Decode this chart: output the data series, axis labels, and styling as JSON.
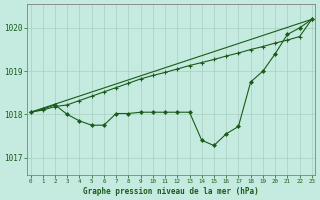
{
  "background_color": "#c5eae0",
  "grid_color": "#a8cfc0",
  "line_color": "#1a5c1a",
  "xlabel": "Graphe pression niveau de la mer (hPa)",
  "ylim": [
    1016.6,
    1020.55
  ],
  "xlim": [
    -0.3,
    23.3
  ],
  "yticks": [
    1017,
    1018,
    1019,
    1020
  ],
  "xticks": [
    0,
    1,
    2,
    3,
    4,
    5,
    6,
    7,
    8,
    9,
    10,
    11,
    12,
    13,
    14,
    15,
    16,
    17,
    18,
    19,
    20,
    21,
    22,
    23
  ],
  "series_straight": {
    "x": [
      0,
      23
    ],
    "y": [
      1018.05,
      1020.2
    ]
  },
  "series_upper": {
    "x": [
      0,
      1,
      2,
      3,
      4,
      5,
      6,
      7,
      8,
      9,
      10,
      11,
      12,
      13,
      14,
      15,
      16,
      17,
      18,
      19,
      20,
      21,
      22,
      23
    ],
    "y": [
      1018.05,
      1018.1,
      1018.18,
      1018.22,
      1018.32,
      1018.42,
      1018.52,
      1018.62,
      1018.72,
      1018.82,
      1018.9,
      1018.97,
      1019.05,
      1019.13,
      1019.2,
      1019.27,
      1019.35,
      1019.42,
      1019.5,
      1019.57,
      1019.65,
      1019.72,
      1019.8,
      1020.2
    ]
  },
  "series_zigzag": {
    "x": [
      0,
      1,
      2,
      3,
      4,
      5,
      6,
      7,
      8,
      9,
      10,
      11,
      12,
      13,
      14,
      15,
      16,
      17,
      18,
      19,
      20,
      21,
      22,
      23
    ],
    "y": [
      1018.05,
      1018.12,
      1018.22,
      1018.0,
      1017.85,
      1017.75,
      1017.75,
      1018.02,
      1018.02,
      1018.05,
      1018.05,
      1018.05,
      1018.05,
      1018.05,
      1017.4,
      1017.28,
      1017.55,
      1017.72,
      1018.75,
      1019.0,
      1019.4,
      1019.85,
      1020.0,
      1020.2
    ]
  }
}
